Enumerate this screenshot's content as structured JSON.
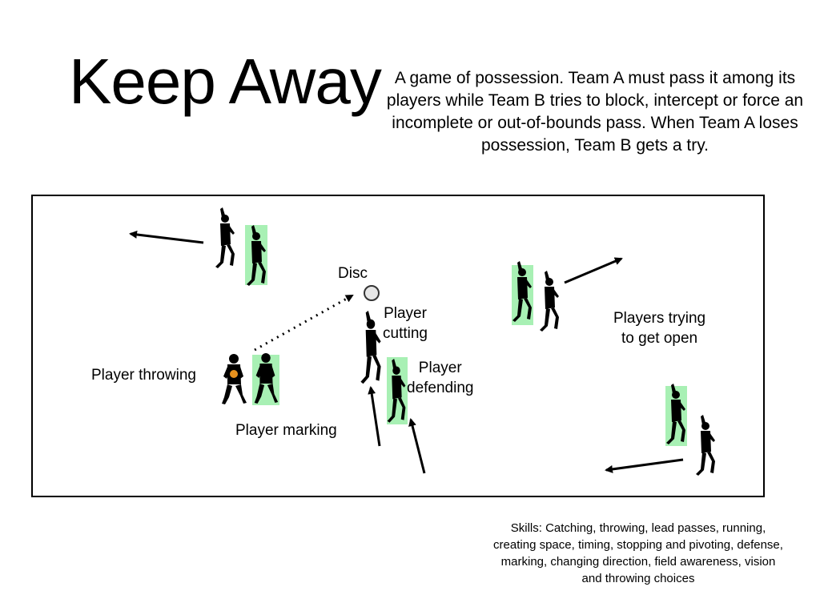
{
  "slide": {
    "title": "Keep Away",
    "description": "A game of possession. Team A must pass it among its players while Team B tries to block, intercept or force an incomplete or out-of-bounds pass. When Team A loses possession, Team B gets a try.",
    "skills": "Skills: Catching, throwing, lead passes, running, creating space, timing, stopping and pivoting, defense, marking, changing direction, field awareness, vision and throwing choices"
  },
  "diagram": {
    "labels": {
      "disc": "Disc",
      "player_cutting": [
        "Player",
        "cutting"
      ],
      "player_defending": [
        "Player",
        "defending"
      ],
      "player_throwing": "Player throwing",
      "player_marking": "Player marking",
      "players_open": [
        "Players trying",
        "to get open"
      ]
    },
    "colors": {
      "team_b_highlight": "#a8f0b4",
      "silhouette": "#000000",
      "disc_fill": "#e6e6e6",
      "held_disc": "#e8921e"
    }
  }
}
